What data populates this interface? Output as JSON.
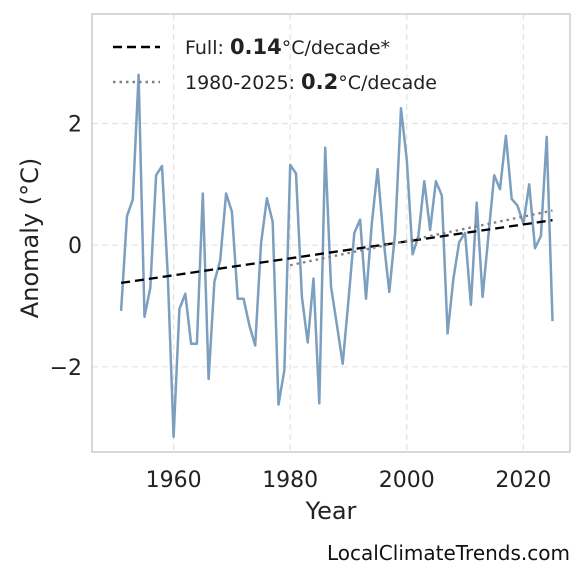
{
  "chart_data": {
    "type": "line",
    "xlabel": "Year",
    "ylabel": "Anomaly (°C)",
    "xlim": [
      1946,
      2028
    ],
    "ylim": [
      -3.4,
      3.8
    ],
    "xticks": [
      1960,
      1980,
      2000,
      2020
    ],
    "yticks": [
      -2,
      0,
      2
    ],
    "ytick_labels": [
      "−2",
      "0",
      "2"
    ],
    "grid": true,
    "legend_position": "top-left",
    "series": [
      {
        "style": "solid",
        "color": "#7c9ebf",
        "x": [
          1951,
          1952,
          1953,
          1954,
          1955,
          1956,
          1957,
          1958,
          1959,
          1960,
          1961,
          1962,
          1963,
          1964,
          1965,
          1966,
          1967,
          1968,
          1969,
          1970,
          1971,
          1972,
          1973,
          1974,
          1975,
          1976,
          1977,
          1978,
          1979,
          1980,
          1981,
          1982,
          1983,
          1984,
          1985,
          1986,
          1987,
          1988,
          1989,
          1990,
          1991,
          1992,
          1993,
          1994,
          1995,
          1996,
          1997,
          1998,
          1999,
          2000,
          2001,
          2002,
          2003,
          2004,
          2005,
          2006,
          2007,
          2008,
          2009,
          2010,
          2011,
          2012,
          2013,
          2014,
          2015,
          2016,
          2017,
          2018,
          2019,
          2020,
          2021,
          2022,
          2023,
          2024,
          2025
        ],
        "y": [
          -1.08,
          0.48,
          0.75,
          2.8,
          -1.18,
          -0.7,
          1.15,
          1.3,
          -0.5,
          -3.15,
          -1.05,
          -0.8,
          -1.62,
          -1.62,
          0.85,
          -2.2,
          -0.6,
          -0.25,
          0.85,
          0.55,
          -0.88,
          -0.88,
          -1.32,
          -1.65,
          0.02,
          0.77,
          0.38,
          -2.62,
          -2.05,
          1.32,
          1.18,
          -0.85,
          -1.6,
          -0.55,
          -2.6,
          1.6,
          -0.68,
          -1.3,
          -1.95,
          -0.9,
          0.2,
          0.42,
          -0.88,
          0.35,
          1.25,
          0.1,
          -0.77,
          0.2,
          2.25,
          1.4,
          -0.15,
          0.15,
          1.05,
          0.25,
          1.05,
          0.82,
          -1.45,
          -0.55,
          0.05,
          0.2,
          -0.98,
          0.7,
          -0.85,
          0.15,
          1.15,
          0.92,
          1.8,
          0.76,
          0.65,
          0.35,
          1.0,
          -0.05,
          0.15,
          1.78,
          -1.25
        ]
      },
      {
        "name": "Full",
        "style": "dashed",
        "color": "#000000",
        "x": [
          1951,
          2025
        ],
        "y": [
          -0.62,
          0.41
        ],
        "rate_value": "0.14",
        "rate_unit": "°C/decade*"
      },
      {
        "name": "1980-2025",
        "style": "dotted",
        "color": "#808080",
        "x": [
          1980,
          2025
        ],
        "y": [
          -0.33,
          0.57
        ],
        "rate_value": "0.2",
        "rate_unit": "°C/decade"
      }
    ]
  },
  "legend": [
    {
      "prefix": "Full: ",
      "bold": "0.14",
      "suffix": "°C/decade*"
    },
    {
      "prefix": "1980-2025: ",
      "bold": "0.2",
      "suffix": "°C/decade"
    }
  ],
  "credit": "LocalClimateTrends.com"
}
